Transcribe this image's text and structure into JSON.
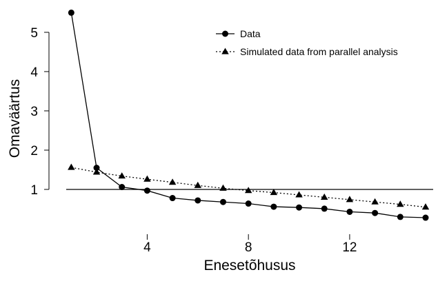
{
  "chart_data": {
    "type": "line",
    "xlabel": "Enesetõhusus",
    "ylabel": "Omaväärtus",
    "x": [
      1,
      2,
      3,
      4,
      5,
      6,
      7,
      8,
      9,
      10,
      11,
      12,
      13,
      14,
      15
    ],
    "xlim": [
      0.8,
      15.3
    ],
    "ylim": [
      0.0,
      5.7
    ],
    "x_ticks": [
      4,
      8,
      12
    ],
    "y_ticks": [
      1,
      2,
      3,
      4,
      5
    ],
    "reference_line": 1,
    "grid": false,
    "legend_position": "top-right",
    "series": [
      {
        "name": "Data",
        "marker": "circle",
        "line_style": "solid",
        "color": "#000000",
        "values": [
          5.5,
          1.55,
          1.06,
          0.97,
          0.78,
          0.72,
          0.68,
          0.64,
          0.56,
          0.54,
          0.51,
          0.43,
          0.4,
          0.3,
          0.28
        ]
      },
      {
        "name": "Simulated data from parallel analysis",
        "marker": "triangle",
        "line_style": "dotted",
        "color": "#000000",
        "values": [
          1.56,
          1.44,
          1.34,
          1.26,
          1.18,
          1.1,
          1.03,
          0.97,
          0.92,
          0.86,
          0.8,
          0.74,
          0.68,
          0.62,
          0.55
        ]
      }
    ]
  }
}
